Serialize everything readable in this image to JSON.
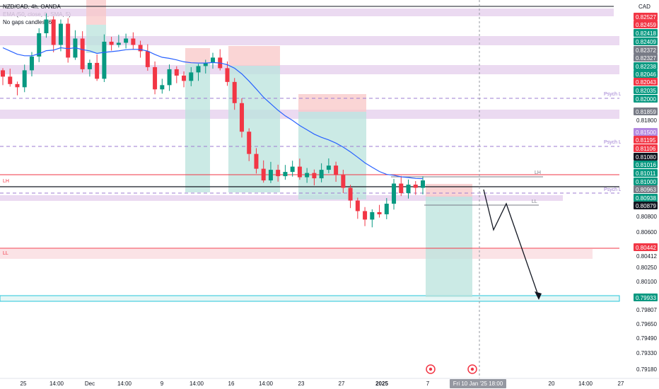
{
  "legend": {
    "symbol": "NZD/CAD, 4h, OANDA",
    "ema": "EMA (50, close, 0, SMA, 5)",
    "gaps": "No gaps candles (6)"
  },
  "currency": "CAD",
  "colors": {
    "up": "#089981",
    "down": "#f23645",
    "ema": "#2962ff",
    "zone_purple": "#e7d4ef",
    "psych_line": "#9c7bd1",
    "red_line": "#f23645",
    "teal_zone": "#b9e3dc",
    "red_zone": "#f8c7c7"
  },
  "time_axis": {
    "labels": [
      "25",
      "14:00",
      "Dec",
      "14:00",
      "9",
      "14:00",
      "16",
      "14:00",
      "23",
      "27",
      "2025",
      "7",
      "14:00",
      "20",
      "14:00",
      "27"
    ],
    "crosshair_label": "Fri 10 Jan '25   18:00"
  },
  "price_axis": [
    {
      "text": "0.82527",
      "color": "#f23645"
    },
    {
      "text": "0.82459",
      "color": "#f23645"
    },
    {
      "text": "0.82418",
      "color": "#089981"
    },
    {
      "text": "0.82409",
      "color": "#089981"
    },
    {
      "text": "0.82372",
      "color": "#787b86"
    },
    {
      "text": "0.82327",
      "color": "#787b86"
    },
    {
      "text": "0.82238",
      "color": "#089981"
    },
    {
      "text": "0.82046",
      "color": "#089981"
    },
    {
      "text": "0.82043",
      "color": "#f23645"
    },
    {
      "text": "0.82035",
      "color": "#089981"
    },
    {
      "text": "0.82000",
      "color": "#089981"
    },
    {
      "text": "0.81859",
      "color": "#787b86"
    },
    {
      "text": "0.81800",
      "color": ""
    },
    {
      "text": "0.81500",
      "color": "#b388e0"
    },
    {
      "text": "0.81195",
      "color": "#f23645"
    },
    {
      "text": "0.81106",
      "color": "#f23645"
    },
    {
      "text": "0.81080",
      "color": "#131722"
    },
    {
      "text": "0.81016",
      "color": "#089981"
    },
    {
      "text": "0.81011",
      "color": "#089981"
    },
    {
      "text": "0.81000",
      "color": "#089981"
    },
    {
      "text": "0.80963",
      "color": "#787b86"
    },
    {
      "text": "0.80938",
      "color": "#089981"
    },
    {
      "text": "0.80879",
      "color": "#131722"
    },
    {
      "text": "0.80800",
      "color": ""
    },
    {
      "text": "0.80600",
      "color": ""
    },
    {
      "text": "0.80442",
      "color": "#f23645"
    },
    {
      "text": "0.80412",
      "color": ""
    },
    {
      "text": "0.80250",
      "color": ""
    },
    {
      "text": "0.80100",
      "color": ""
    },
    {
      "text": "0.79933",
      "color": "#089981"
    },
    {
      "text": "0.79807",
      "color": ""
    },
    {
      "text": "0.79650",
      "color": ""
    },
    {
      "text": "0.79490",
      "color": ""
    },
    {
      "text": "0.79330",
      "color": ""
    },
    {
      "text": "0.79180",
      "color": ""
    }
  ],
  "annotations": {
    "lh_right": "LH",
    "psych_level": "Psych Level",
    "lh": "LH",
    "ll": "LL",
    "low": "Low"
  },
  "chart_data": {
    "type": "candlestick",
    "title": "NZD/CAD, 4h, OANDA",
    "xlabel": "",
    "ylabel": "CAD",
    "ylim": [
      0.7918,
      0.8258
    ],
    "x_ticks": [
      "25",
      "14:00",
      "Dec",
      "14:00",
      "9",
      "14:00",
      "16",
      "14:00",
      "23",
      "27",
      "2025",
      "7",
      "14:00",
      "20",
      "14:00",
      "27"
    ],
    "y_ticks": [
      0.7918,
      0.7933,
      0.7949,
      0.7965,
      0.7981,
      0.7993,
      0.801,
      0.8025,
      0.8041,
      0.8044,
      0.806,
      0.808,
      0.8088,
      0.8094,
      0.8096,
      0.81,
      0.8101,
      0.8102,
      0.8108,
      0.8111,
      0.812,
      0.815,
      0.818,
      0.8186,
      0.82,
      0.8204,
      0.8205,
      0.8224,
      0.8233,
      0.8237,
      0.8241,
      0.8242,
      0.8246,
      0.8253
    ],
    "levels": [
      {
        "label": "Psych Level",
        "value": 0.82
      },
      {
        "label": "Psych Level",
        "value": 0.815
      },
      {
        "label": "Psych Level",
        "value": 0.8096
      },
      {
        "label": "LH",
        "value": 0.8101
      },
      {
        "label": "LL",
        "value": 0.8044
      },
      {
        "label": "LL",
        "value": 0.8088
      }
    ],
    "close_path": [
      0.8195,
      0.8188,
      0.8185,
      0.8201,
      0.8214,
      0.8236,
      0.8249,
      0.8225,
      0.8245,
      0.8213,
      0.8231,
      0.8202,
      0.8208,
      0.8193,
      0.8228,
      0.8225,
      0.8227,
      0.8231,
      0.8225,
      0.8219,
      0.8204,
      0.8183,
      0.8187,
      0.8202,
      0.8196,
      0.8191,
      0.8199,
      0.8205,
      0.8208,
      0.8213,
      0.8203,
      0.819,
      0.817,
      0.8143,
      0.8122,
      0.8108,
      0.8097,
      0.8107,
      0.8101,
      0.8105,
      0.811,
      0.81,
      0.8104,
      0.8099,
      0.8107,
      0.8111,
      0.8102,
      0.809,
      0.8078,
      0.8068,
      0.806,
      0.8067,
      0.8065,
      0.8075,
      0.8094,
      0.8085,
      0.8093,
      0.809,
      0.8097
    ]
  }
}
